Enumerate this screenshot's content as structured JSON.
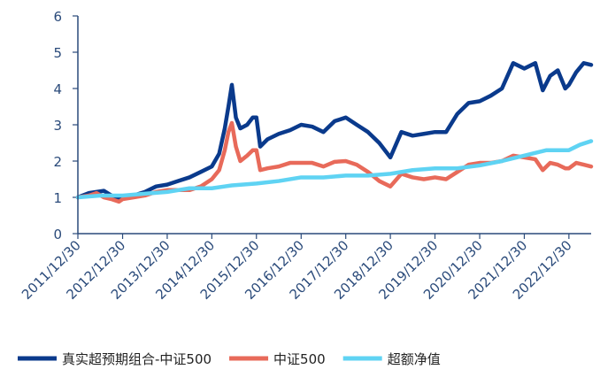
{
  "chart_data": {
    "type": "line",
    "title": "",
    "xlabel": "",
    "ylabel": "",
    "ylim": [
      0,
      6
    ],
    "yticks": [
      "0",
      "1",
      "2",
      "3",
      "4",
      "5",
      "6"
    ],
    "x_tick_labels": [
      "2011/12/30",
      "2012/12/30",
      "2013/12/30",
      "2014/12/30",
      "2015/12/30",
      "2016/12/30",
      "2017/12/30",
      "2018/12/30",
      "2019/12/30",
      "2020/12/30",
      "2021/12/30",
      "2022/12/30"
    ],
    "x_range": [
      "2011-12-30",
      "2023-06-30"
    ],
    "grid": false,
    "legend_position": "bottom",
    "axis_color": "#2a4a7a",
    "series": [
      {
        "name": "真实超预期组合-中证500",
        "color": "#0a3a8c",
        "points": [
          [
            "2011-12-30",
            1.0
          ],
          [
            "2012-03-30",
            1.12
          ],
          [
            "2012-05-30",
            1.15
          ],
          [
            "2012-07-30",
            1.18
          ],
          [
            "2012-09-30",
            1.05
          ],
          [
            "2012-11-30",
            0.95
          ],
          [
            "2012-12-30",
            1.0
          ],
          [
            "2013-03-30",
            1.05
          ],
          [
            "2013-06-30",
            1.15
          ],
          [
            "2013-09-30",
            1.3
          ],
          [
            "2013-12-30",
            1.35
          ],
          [
            "2014-03-30",
            1.45
          ],
          [
            "2014-06-30",
            1.55
          ],
          [
            "2014-09-30",
            1.7
          ],
          [
            "2014-12-30",
            1.85
          ],
          [
            "2015-02-28",
            2.2
          ],
          [
            "2015-04-15",
            2.9
          ],
          [
            "2015-05-15",
            3.5
          ],
          [
            "2015-06-12",
            4.1
          ],
          [
            "2015-07-15",
            3.2
          ],
          [
            "2015-08-20",
            2.9
          ],
          [
            "2015-10-15",
            3.0
          ],
          [
            "2015-11-30",
            3.2
          ],
          [
            "2015-12-30",
            3.2
          ],
          [
            "2016-01-30",
            2.4
          ],
          [
            "2016-03-30",
            2.6
          ],
          [
            "2016-06-30",
            2.75
          ],
          [
            "2016-09-30",
            2.85
          ],
          [
            "2016-12-30",
            3.0
          ],
          [
            "2017-03-30",
            2.95
          ],
          [
            "2017-06-30",
            2.8
          ],
          [
            "2017-09-30",
            3.1
          ],
          [
            "2017-12-30",
            3.2
          ],
          [
            "2018-03-30",
            3.0
          ],
          [
            "2018-06-30",
            2.8
          ],
          [
            "2018-09-30",
            2.5
          ],
          [
            "2018-12-30",
            2.1
          ],
          [
            "2019-03-30",
            2.8
          ],
          [
            "2019-06-30",
            2.7
          ],
          [
            "2019-09-30",
            2.75
          ],
          [
            "2019-12-30",
            2.8
          ],
          [
            "2020-03-30",
            2.8
          ],
          [
            "2020-06-30",
            3.3
          ],
          [
            "2020-09-30",
            3.6
          ],
          [
            "2020-12-30",
            3.65
          ],
          [
            "2021-03-30",
            3.8
          ],
          [
            "2021-06-30",
            4.0
          ],
          [
            "2021-09-30",
            4.7
          ],
          [
            "2021-12-30",
            4.55
          ],
          [
            "2022-03-30",
            4.7
          ],
          [
            "2022-05-30",
            3.95
          ],
          [
            "2022-07-30",
            4.35
          ],
          [
            "2022-09-30",
            4.5
          ],
          [
            "2022-11-30",
            4.0
          ],
          [
            "2022-12-30",
            4.1
          ],
          [
            "2023-02-28",
            4.45
          ],
          [
            "2023-04-30",
            4.7
          ],
          [
            "2023-06-30",
            4.65
          ]
        ]
      },
      {
        "name": "中证500",
        "color": "#e86a5a",
        "points": [
          [
            "2011-12-30",
            1.0
          ],
          [
            "2012-03-30",
            1.05
          ],
          [
            "2012-05-30",
            1.12
          ],
          [
            "2012-07-30",
            1.0
          ],
          [
            "2012-09-30",
            0.95
          ],
          [
            "2012-11-30",
            0.88
          ],
          [
            "2012-12-30",
            0.95
          ],
          [
            "2013-03-30",
            1.0
          ],
          [
            "2013-06-30",
            1.05
          ],
          [
            "2013-09-30",
            1.15
          ],
          [
            "2013-12-30",
            1.2
          ],
          [
            "2014-03-30",
            1.2
          ],
          [
            "2014-06-30",
            1.2
          ],
          [
            "2014-09-30",
            1.3
          ],
          [
            "2014-12-30",
            1.5
          ],
          [
            "2015-02-28",
            1.75
          ],
          [
            "2015-04-15",
            2.3
          ],
          [
            "2015-05-15",
            2.8
          ],
          [
            "2015-06-12",
            3.05
          ],
          [
            "2015-07-15",
            2.4
          ],
          [
            "2015-08-20",
            2.0
          ],
          [
            "2015-10-15",
            2.15
          ],
          [
            "2015-11-30",
            2.3
          ],
          [
            "2015-12-30",
            2.3
          ],
          [
            "2016-01-30",
            1.75
          ],
          [
            "2016-03-30",
            1.8
          ],
          [
            "2016-06-30",
            1.85
          ],
          [
            "2016-09-30",
            1.95
          ],
          [
            "2016-12-30",
            1.95
          ],
          [
            "2017-03-30",
            1.95
          ],
          [
            "2017-06-30",
            1.85
          ],
          [
            "2017-09-30",
            1.98
          ],
          [
            "2017-12-30",
            2.0
          ],
          [
            "2018-03-30",
            1.9
          ],
          [
            "2018-06-30",
            1.7
          ],
          [
            "2018-09-30",
            1.45
          ],
          [
            "2018-12-30",
            1.3
          ],
          [
            "2019-03-30",
            1.65
          ],
          [
            "2019-06-30",
            1.55
          ],
          [
            "2019-09-30",
            1.5
          ],
          [
            "2019-12-30",
            1.55
          ],
          [
            "2020-03-30",
            1.5
          ],
          [
            "2020-06-30",
            1.7
          ],
          [
            "2020-09-30",
            1.9
          ],
          [
            "2020-12-30",
            1.95
          ],
          [
            "2021-03-30",
            1.95
          ],
          [
            "2021-06-30",
            2.0
          ],
          [
            "2021-09-30",
            2.15
          ],
          [
            "2021-12-30",
            2.1
          ],
          [
            "2022-03-30",
            2.05
          ],
          [
            "2022-05-30",
            1.75
          ],
          [
            "2022-07-30",
            1.95
          ],
          [
            "2022-09-30",
            1.9
          ],
          [
            "2022-11-30",
            1.8
          ],
          [
            "2022-12-30",
            1.8
          ],
          [
            "2023-02-28",
            1.95
          ],
          [
            "2023-04-30",
            1.9
          ],
          [
            "2023-06-30",
            1.85
          ]
        ]
      },
      {
        "name": "超额净值",
        "color": "#5fd3f3",
        "points": [
          [
            "2011-12-30",
            1.0
          ],
          [
            "2012-06-30",
            1.05
          ],
          [
            "2012-12-30",
            1.05
          ],
          [
            "2013-06-30",
            1.1
          ],
          [
            "2013-12-30",
            1.15
          ],
          [
            "2014-06-30",
            1.25
          ],
          [
            "2014-12-30",
            1.25
          ],
          [
            "2015-06-12",
            1.33
          ],
          [
            "2015-12-30",
            1.38
          ],
          [
            "2016-06-30",
            1.45
          ],
          [
            "2016-12-30",
            1.55
          ],
          [
            "2017-06-30",
            1.55
          ],
          [
            "2017-12-30",
            1.6
          ],
          [
            "2018-06-30",
            1.6
          ],
          [
            "2018-12-30",
            1.65
          ],
          [
            "2019-06-30",
            1.75
          ],
          [
            "2019-12-30",
            1.8
          ],
          [
            "2020-06-30",
            1.8
          ],
          [
            "2020-12-30",
            1.88
          ],
          [
            "2021-06-30",
            2.0
          ],
          [
            "2021-12-30",
            2.15
          ],
          [
            "2022-06-30",
            2.3
          ],
          [
            "2022-12-30",
            2.3
          ],
          [
            "2023-03-30",
            2.45
          ],
          [
            "2023-06-30",
            2.55
          ]
        ]
      }
    ]
  }
}
